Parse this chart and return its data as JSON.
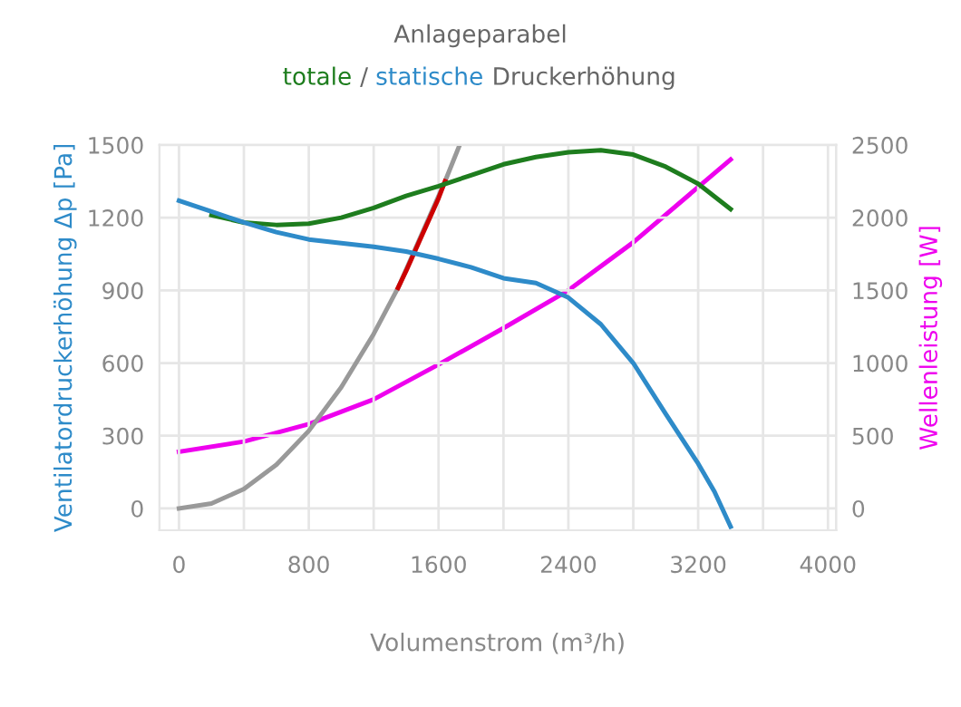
{
  "chart_data": {
    "type": "line",
    "title": "Anlageparabel",
    "xlabel": "Volumenstrom (m³/h)",
    "ylabel": "Ventilatordruckerhöhung Δp [Pa]",
    "y2label": "Wellenleistung [W]",
    "annotations": [
      "/",
      "Druckerhöhung"
    ],
    "series": [
      {
        "color": "#999999",
        "x": [
          0,
          200,
          400,
          600,
          800,
          1000,
          1200,
          1350,
          1640,
          1730
        ],
        "values": [
          0,
          20,
          80,
          180,
          320,
          500,
          720,
          910,
          1350,
          1500
        ]
      },
      {
        "color": "#cc0000",
        "x": [
          1350,
          1400,
          1500,
          1600,
          1640
        ],
        "values": [
          910,
          980,
          1130,
          1280,
          1350
        ]
      },
      {
        "name": "totale",
        "color": "#1e7d1e",
        "x": [
          200,
          400,
          600,
          800,
          1000,
          1200,
          1400,
          1600,
          1800,
          2000,
          2200,
          2400,
          2600,
          2800,
          3000,
          3200,
          3400
        ],
        "values": [
          1210,
          1180,
          1170,
          1175,
          1200,
          1240,
          1290,
          1330,
          1375,
          1420,
          1450,
          1470,
          1478,
          1460,
          1410,
          1340,
          1235
        ]
      },
      {
        "name": "statische",
        "color": "#2e8bc9",
        "x": [
          0,
          200,
          400,
          600,
          800,
          1000,
          1200,
          1400,
          1600,
          1800,
          2000,
          2200,
          2400,
          2600,
          2800,
          3000,
          3200,
          3300,
          3400
        ],
        "values": [
          1270,
          1225,
          1180,
          1140,
          1110,
          1095,
          1080,
          1060,
          1030,
          995,
          950,
          930,
          870,
          760,
          600,
          390,
          185,
          70,
          -75
        ]
      },
      {
        "color": "#ee00ee",
        "axis": "y2",
        "x": [
          0,
          400,
          800,
          1200,
          1600,
          2000,
          2400,
          2800,
          3200,
          3400
        ],
        "values": [
          390,
          460,
          580,
          750,
          990,
          1240,
          1500,
          1830,
          2210,
          2400
        ]
      }
    ],
    "xlim": [
      -120,
      4050
    ],
    "ylim": [
      -90,
      1500
    ],
    "y2lim": [
      -150,
      2500
    ],
    "xticks": [
      0,
      {
        "value": 400,
        "label": null
      },
      800,
      {
        "value": 1200,
        "label": null
      },
      1600,
      {
        "value": 2000,
        "label": null
      },
      2400,
      {
        "value": 2800,
        "label": null
      },
      3200,
      {
        "value": 3600,
        "label": null
      },
      4000
    ],
    "yticks": [
      0,
      300,
      600,
      900,
      1200,
      1500
    ],
    "y2ticks": [
      0,
      500,
      1000,
      1500,
      2000,
      2500
    ],
    "grid": true,
    "legend": "top"
  }
}
